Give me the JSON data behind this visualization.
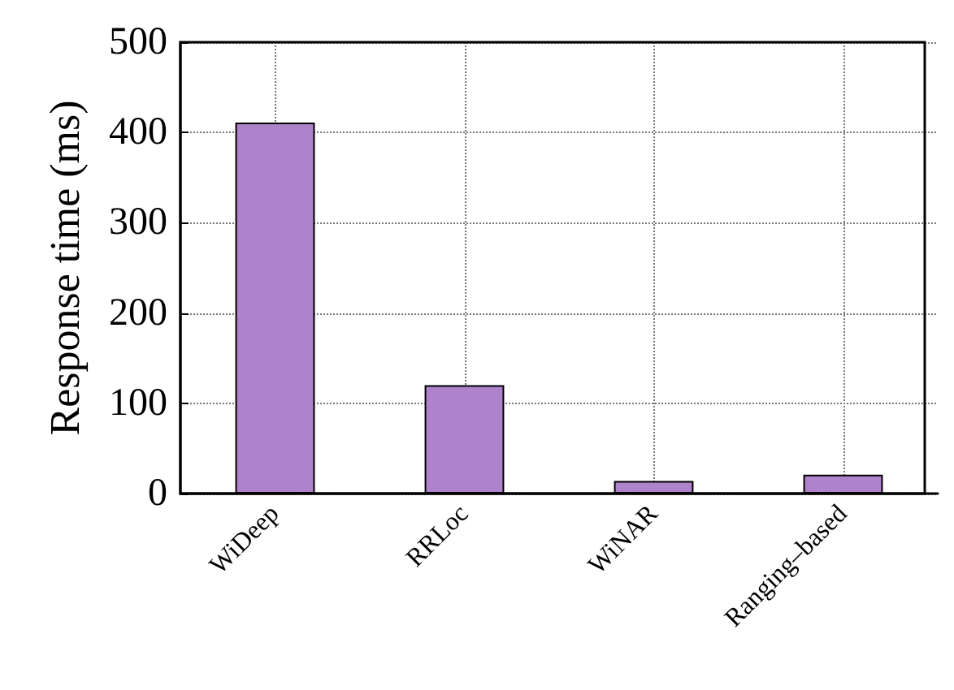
{
  "chart_data": {
    "type": "bar",
    "ylabel": "Response time (ms)",
    "categories": [
      "WiDeep",
      "RRLoc",
      "WiNAR",
      "Ranging–based"
    ],
    "values": [
      411,
      120,
      14,
      21
    ],
    "color": "#af83cb",
    "ylim": [
      0,
      500
    ],
    "yticks": [
      0,
      100,
      200,
      300,
      400,
      500
    ],
    "grid": true
  }
}
